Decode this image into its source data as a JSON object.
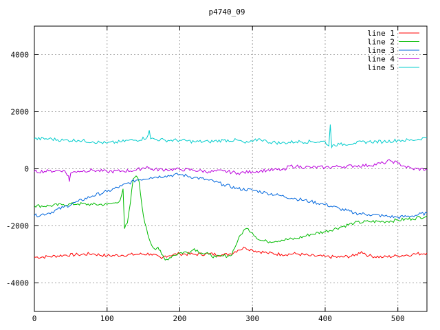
{
  "chart_data": {
    "type": "line",
    "title": "p4740_09",
    "xlabel": "",
    "ylabel": "",
    "xlim": [
      0,
      540
    ],
    "ylim": [
      -5000,
      5000
    ],
    "x_ticks": [
      0,
      100,
      200,
      300,
      400,
      500
    ],
    "x_tick_labels": [
      "0",
      "100",
      "200",
      "300",
      "400",
      "500"
    ],
    "y_ticks": [
      -4000,
      -2000,
      0,
      2000,
      4000
    ],
    "y_tick_labels": [
      "-4000",
      "-2000",
      "0",
      "2000",
      "4000"
    ],
    "grid": true,
    "legend_position": "top-right",
    "series": [
      {
        "name": "line 1",
        "color": "#ff0000",
        "points": [
          [
            0,
            -3100
          ],
          [
            20,
            -3080
          ],
          [
            40,
            -3030
          ],
          [
            60,
            -3010
          ],
          [
            80,
            -2980
          ],
          [
            100,
            -3050
          ],
          [
            120,
            -3030
          ],
          [
            140,
            -3000
          ],
          [
            160,
            -2980
          ],
          [
            175,
            -3150
          ],
          [
            180,
            -3050
          ],
          [
            200,
            -2980
          ],
          [
            220,
            -3000
          ],
          [
            240,
            -2980
          ],
          [
            260,
            -3020
          ],
          [
            270,
            -2980
          ],
          [
            280,
            -2850
          ],
          [
            290,
            -2760
          ],
          [
            300,
            -2850
          ],
          [
            320,
            -2950
          ],
          [
            340,
            -3000
          ],
          [
            360,
            -2980
          ],
          [
            380,
            -3050
          ],
          [
            400,
            -3080
          ],
          [
            420,
            -3100
          ],
          [
            440,
            -3050
          ],
          [
            450,
            -2900
          ],
          [
            460,
            -3050
          ],
          [
            480,
            -3100
          ],
          [
            500,
            -3050
          ],
          [
            520,
            -3000
          ],
          [
            540,
            -2950
          ]
        ]
      },
      {
        "name": "line 2",
        "color": "#00bb00",
        "points": [
          [
            0,
            -1300
          ],
          [
            20,
            -1300
          ],
          [
            40,
            -1250
          ],
          [
            60,
            -1230
          ],
          [
            80,
            -1250
          ],
          [
            100,
            -1250
          ],
          [
            110,
            -1200
          ],
          [
            118,
            -1100
          ],
          [
            122,
            -700
          ],
          [
            124,
            -2100
          ],
          [
            128,
            -1900
          ],
          [
            132,
            -1200
          ],
          [
            136,
            -350
          ],
          [
            140,
            -250
          ],
          [
            144,
            -450
          ],
          [
            148,
            -1300
          ],
          [
            152,
            -1900
          ],
          [
            156,
            -2300
          ],
          [
            160,
            -2600
          ],
          [
            165,
            -2800
          ],
          [
            170,
            -2750
          ],
          [
            175,
            -3000
          ],
          [
            180,
            -3200
          ],
          [
            190,
            -3050
          ],
          [
            200,
            -2950
          ],
          [
            215,
            -2900
          ],
          [
            220,
            -2800
          ],
          [
            230,
            -2950
          ],
          [
            240,
            -3000
          ],
          [
            250,
            -3100
          ],
          [
            260,
            -3050
          ],
          [
            270,
            -3050
          ],
          [
            275,
            -2800
          ],
          [
            280,
            -2500
          ],
          [
            288,
            -2150
          ],
          [
            294,
            -2100
          ],
          [
            300,
            -2250
          ],
          [
            310,
            -2500
          ],
          [
            320,
            -2550
          ],
          [
            340,
            -2500
          ],
          [
            360,
            -2450
          ],
          [
            380,
            -2300
          ],
          [
            400,
            -2200
          ],
          [
            420,
            -2050
          ],
          [
            440,
            -1900
          ],
          [
            460,
            -1850
          ],
          [
            480,
            -1850
          ],
          [
            500,
            -1800
          ],
          [
            520,
            -1750
          ],
          [
            540,
            -1650
          ]
        ]
      },
      {
        "name": "line 3",
        "color": "#0066dd",
        "points": [
          [
            0,
            -1650
          ],
          [
            20,
            -1550
          ],
          [
            40,
            -1350
          ],
          [
            60,
            -1150
          ],
          [
            80,
            -950
          ],
          [
            100,
            -800
          ],
          [
            120,
            -600
          ],
          [
            140,
            -400
          ],
          [
            160,
            -300
          ],
          [
            180,
            -250
          ],
          [
            200,
            -200
          ],
          [
            220,
            -300
          ],
          [
            240,
            -400
          ],
          [
            260,
            -550
          ],
          [
            280,
            -700
          ],
          [
            300,
            -750
          ],
          [
            320,
            -850
          ],
          [
            340,
            -950
          ],
          [
            360,
            -1050
          ],
          [
            380,
            -1150
          ],
          [
            400,
            -1250
          ],
          [
            420,
            -1400
          ],
          [
            440,
            -1550
          ],
          [
            460,
            -1600
          ],
          [
            480,
            -1650
          ],
          [
            500,
            -1700
          ],
          [
            520,
            -1650
          ],
          [
            540,
            -1550
          ]
        ]
      },
      {
        "name": "line 4",
        "color": "#bb00dd",
        "points": [
          [
            0,
            -100
          ],
          [
            20,
            -80
          ],
          [
            40,
            -50
          ],
          [
            47,
            -250
          ],
          [
            48,
            -450
          ],
          [
            50,
            -150
          ],
          [
            60,
            -80
          ],
          [
            80,
            -50
          ],
          [
            100,
            -100
          ],
          [
            120,
            -80
          ],
          [
            140,
            -50
          ],
          [
            155,
            80
          ],
          [
            160,
            -20
          ],
          [
            180,
            -30
          ],
          [
            200,
            -20
          ],
          [
            220,
            -50
          ],
          [
            240,
            -100
          ],
          [
            260,
            -80
          ],
          [
            280,
            -150
          ],
          [
            300,
            -100
          ],
          [
            320,
            -50
          ],
          [
            340,
            -30
          ],
          [
            345,
            -50
          ],
          [
            350,
            100
          ],
          [
            360,
            80
          ],
          [
            380,
            50
          ],
          [
            400,
            50
          ],
          [
            420,
            80
          ],
          [
            440,
            100
          ],
          [
            460,
            120
          ],
          [
            480,
            200
          ],
          [
            490,
            280
          ],
          [
            500,
            200
          ],
          [
            510,
            80
          ],
          [
            520,
            0
          ],
          [
            540,
            -20
          ]
        ]
      },
      {
        "name": "line 5",
        "color": "#00cccc",
        "points": [
          [
            0,
            1050
          ],
          [
            20,
            1050
          ],
          [
            40,
            1000
          ],
          [
            60,
            1000
          ],
          [
            80,
            950
          ],
          [
            100,
            900
          ],
          [
            120,
            950
          ],
          [
            130,
            1000
          ],
          [
            140,
            1000
          ],
          [
            155,
            1100
          ],
          [
            158,
            1350
          ],
          [
            160,
            1050
          ],
          [
            180,
            1000
          ],
          [
            200,
            1000
          ],
          [
            220,
            950
          ],
          [
            240,
            950
          ],
          [
            260,
            1000
          ],
          [
            280,
            1000
          ],
          [
            290,
            900
          ],
          [
            300,
            950
          ],
          [
            310,
            1050
          ],
          [
            320,
            950
          ],
          [
            340,
            900
          ],
          [
            360,
            950
          ],
          [
            380,
            950
          ],
          [
            400,
            950
          ],
          [
            405,
            800
          ],
          [
            407,
            1550
          ],
          [
            409,
            750
          ],
          [
            412,
            850
          ],
          [
            420,
            850
          ],
          [
            440,
            900
          ],
          [
            460,
            950
          ],
          [
            480,
            950
          ],
          [
            500,
            1000
          ],
          [
            520,
            1000
          ],
          [
            540,
            1100
          ]
        ]
      }
    ]
  }
}
